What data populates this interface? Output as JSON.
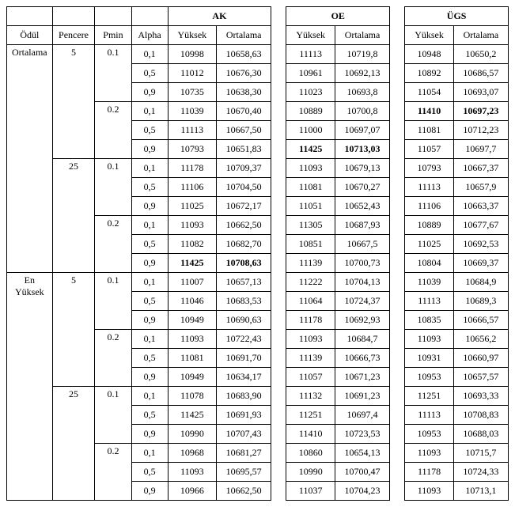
{
  "headers": {
    "odul": "Ödül",
    "pencere": "Pencere",
    "pmin": "Pmin",
    "alpha": "Alpha",
    "yuksek": "Yüksek",
    "ortalama": "Ortalama",
    "groups": {
      "ak": "AK",
      "oe": "OE",
      "ugs": "ÜGS"
    }
  },
  "odul_labels": {
    "ortalama": "Ortalama",
    "en": "En",
    "yuksek": "Yüksek"
  },
  "pencere": {
    "p5": "5",
    "p25": "25"
  },
  "pmin": {
    "p01": "0.1",
    "p02": "0.2"
  },
  "alpha": {
    "a01": "0,1",
    "a05": "0,5",
    "a09": "0,9"
  },
  "rows": [
    {
      "ak_y": "10998",
      "ak_o": "10658,63",
      "oe_y": "11113",
      "oe_o": "10719,8",
      "ug_y": "10948",
      "ug_o": "10650,2"
    },
    {
      "ak_y": "11012",
      "ak_o": "10676,30",
      "oe_y": "10961",
      "oe_o": "10692,13",
      "ug_y": "10892",
      "ug_o": "10686,57"
    },
    {
      "ak_y": "10735",
      "ak_o": "10638,30",
      "oe_y": "11023",
      "oe_o": "10693,8",
      "ug_y": "11054",
      "ug_o": "10693,07"
    },
    {
      "ak_y": "11039",
      "ak_o": "10670,40",
      "oe_y": "10889",
      "oe_o": "10700,8",
      "ug_y": "11410",
      "ug_o": "10697,23",
      "ug_bold": true
    },
    {
      "ak_y": "11113",
      "ak_o": "10667,50",
      "oe_y": "11000",
      "oe_o": "10697,07",
      "ug_y": "11081",
      "ug_o": "10712,23"
    },
    {
      "ak_y": "10793",
      "ak_o": "10651,83",
      "oe_y": "11425",
      "oe_o": "10713,03",
      "ug_y": "11057",
      "ug_o": "10697,7",
      "oe_bold": true
    },
    {
      "ak_y": "11178",
      "ak_o": "10709,37",
      "oe_y": "11093",
      "oe_o": "10679,13",
      "ug_y": "10793",
      "ug_o": "10667,37"
    },
    {
      "ak_y": "11106",
      "ak_o": "10704,50",
      "oe_y": "11081",
      "oe_o": "10670,27",
      "ug_y": "11113",
      "ug_o": "10657,9"
    },
    {
      "ak_y": "11025",
      "ak_o": "10672,17",
      "oe_y": "11051",
      "oe_o": "10652,43",
      "ug_y": "11106",
      "ug_o": "10663,37"
    },
    {
      "ak_y": "11093",
      "ak_o": "10662,50",
      "oe_y": "11305",
      "oe_o": "10687,93",
      "ug_y": "10889",
      "ug_o": "10677,67"
    },
    {
      "ak_y": "11082",
      "ak_o": "10682,70",
      "oe_y": "10851",
      "oe_o": "10667,5",
      "ug_y": "11025",
      "ug_o": "10692,53"
    },
    {
      "ak_y": "11425",
      "ak_o": "10708,63",
      "oe_y": "11139",
      "oe_o": "10700,73",
      "ug_y": "10804",
      "ug_o": "10669,37",
      "ak_bold": true
    },
    {
      "ak_y": "11007",
      "ak_o": "10657,13",
      "oe_y": "11222",
      "oe_o": "10704,13",
      "ug_y": "11039",
      "ug_o": "10684,9"
    },
    {
      "ak_y": "11046",
      "ak_o": "10683,53",
      "oe_y": "11064",
      "oe_o": "10724,37",
      "ug_y": "11113",
      "ug_o": "10689,3"
    },
    {
      "ak_y": "10949",
      "ak_o": "10690,63",
      "oe_y": "11178",
      "oe_o": "10692,93",
      "ug_y": "10835",
      "ug_o": "10666,57"
    },
    {
      "ak_y": "11093",
      "ak_o": "10722,43",
      "oe_y": "11093",
      "oe_o": "10684,7",
      "ug_y": "11093",
      "ug_o": "10656,2"
    },
    {
      "ak_y": "11081",
      "ak_o": "10691,70",
      "oe_y": "11139",
      "oe_o": "10666,73",
      "ug_y": "10931",
      "ug_o": "10660,97"
    },
    {
      "ak_y": "10949",
      "ak_o": "10634,17",
      "oe_y": "11057",
      "oe_o": "10671,23",
      "ug_y": "10953",
      "ug_o": "10657,57"
    },
    {
      "ak_y": "11078",
      "ak_o": "10683,90",
      "oe_y": "11132",
      "oe_o": "10691,23",
      "ug_y": "11251",
      "ug_o": "10693,33"
    },
    {
      "ak_y": "11425",
      "ak_o": "10691,93",
      "oe_y": "11251",
      "oe_o": "10697,4",
      "ug_y": "11113",
      "ug_o": "10708,83"
    },
    {
      "ak_y": "10990",
      "ak_o": "10707,43",
      "oe_y": "11410",
      "oe_o": "10723,53",
      "ug_y": "10953",
      "ug_o": "10688,03"
    },
    {
      "ak_y": "10968",
      "ak_o": "10681,27",
      "oe_y": "10860",
      "oe_o": "10654,13",
      "ug_y": "11093",
      "ug_o": "10715,7"
    },
    {
      "ak_y": "11093",
      "ak_o": "10695,57",
      "oe_y": "10990",
      "oe_o": "10700,47",
      "ug_y": "11178",
      "ug_o": "10724,33"
    },
    {
      "ak_y": "10966",
      "ak_o": "10662,50",
      "oe_y": "11037",
      "oe_o": "10704,23",
      "ug_y": "11093",
      "ug_o": "10713,1"
    }
  ]
}
